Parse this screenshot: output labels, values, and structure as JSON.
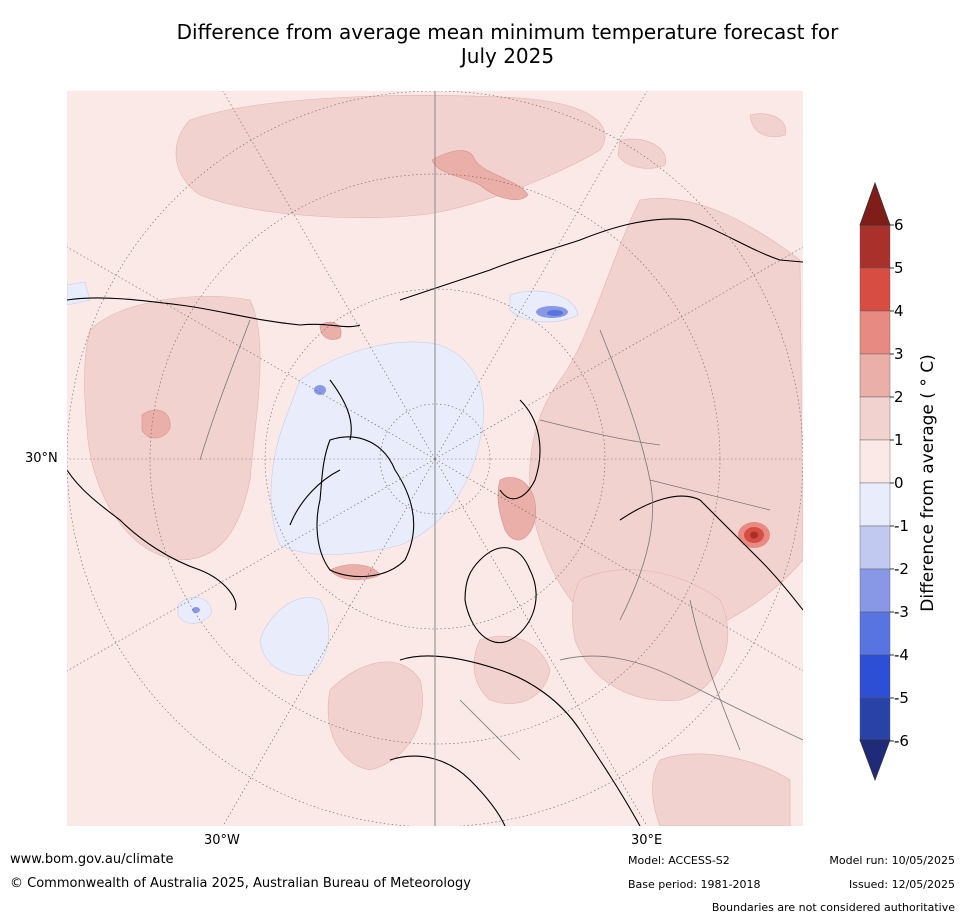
{
  "title": {
    "line1": "Difference from average mean minimum temperature forecast for",
    "line2": "July 2025"
  },
  "map": {
    "projection": "polar stereographic (north pole)",
    "lat_labels": [
      "30°N"
    ],
    "lon_labels": [
      "30°W",
      "30°E"
    ]
  },
  "colorbar": {
    "label": "Difference from average ( ° C)",
    "ticks": [
      "6",
      "5",
      "4",
      "3",
      "2",
      "1",
      "0",
      "-1",
      "-2",
      "-3",
      "-4",
      "-5",
      "-6"
    ],
    "colors": [
      "#a9302b",
      "#d84d42",
      "#e78a82",
      "#ebafa9",
      "#f2d2cf",
      "#fbe9e7",
      "#e9ecfa",
      "#c2c9f1",
      "#8897e6",
      "#5874e0",
      "#2d4fd6",
      "#2942a8"
    ],
    "over_color": "#7f1d18",
    "under_color": "#1f2a7a"
  },
  "footer": {
    "website": "www.bom.gov.au/climate",
    "copyright": "© Commonwealth of Australia 2025, Australian Bureau of Meteorology",
    "model": "Model: ACCESS-S2",
    "base_period": "Base period: 1981-2018",
    "model_run": "Model run: 10/05/2025",
    "issued": "Issued: 12/05/2025",
    "disclaimer": "Boundaries are not considered authoritative"
  }
}
